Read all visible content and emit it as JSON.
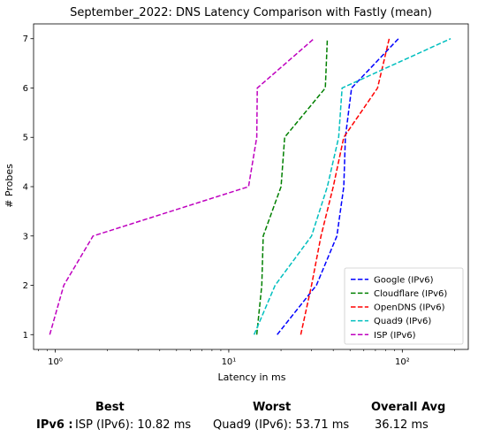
{
  "chart_data": {
    "type": "line",
    "title": "September_2022: DNS Latency Comparison with Fastly (mean)",
    "xlabel": "Latency in ms",
    "ylabel": "# Probes",
    "x_scale": "log",
    "xlim": [
      0.75,
      240
    ],
    "ylim": [
      0.7,
      7.3
    ],
    "x_tick_values": [
      1,
      10,
      100
    ],
    "x_tick_labels": [
      "10⁰",
      "10¹",
      "10²"
    ],
    "y_ticks": [
      1,
      2,
      3,
      4,
      5,
      6,
      7
    ],
    "grid": false,
    "legend_position": "lower-right",
    "series": [
      {
        "name": "Google (IPv6)",
        "color": "#0000ff",
        "dash": "dashed",
        "x": [
          19,
          32,
          42,
          46,
          47,
          51,
          95
        ],
        "y": [
          1,
          2,
          3,
          4,
          5,
          6,
          7
        ]
      },
      {
        "name": "Cloudflare (IPv6)",
        "color": "#008000",
        "dash": "dashed",
        "x": [
          14.5,
          15.5,
          15.8,
          20,
          21,
          36,
          37
        ],
        "y": [
          1,
          2,
          3,
          4,
          5,
          6,
          7
        ]
      },
      {
        "name": "OpenDNS (IPv6)",
        "color": "#ff0000",
        "dash": "dashed",
        "x": [
          26,
          30,
          34,
          40,
          46,
          72,
          84
        ],
        "y": [
          1,
          2,
          3,
          4,
          5,
          6,
          7
        ]
      },
      {
        "name": "Quad9 (IPv6)",
        "color": "#00bfbf",
        "dash": "dashed",
        "x": [
          14,
          18.5,
          30,
          37,
          43,
          45,
          190
        ],
        "y": [
          1,
          2,
          3,
          4,
          5,
          6,
          7
        ]
      },
      {
        "name": "ISP (IPv6)",
        "color": "#bf00bf",
        "dash": "dashed",
        "x": [
          0.93,
          1.12,
          1.65,
          13,
          14.5,
          14.6,
          31
        ],
        "y": [
          1,
          2,
          3,
          4,
          5,
          6,
          7
        ]
      }
    ]
  },
  "summary": {
    "best_header": "Best",
    "worst_header": "Worst",
    "avg_header": "Overall Avg",
    "row_label": "IPv6 :",
    "best_value": "ISP (IPv6): 10.82 ms",
    "worst_value": "Quad9 (IPv6): 53.71 ms",
    "avg_value": "36.12 ms"
  }
}
